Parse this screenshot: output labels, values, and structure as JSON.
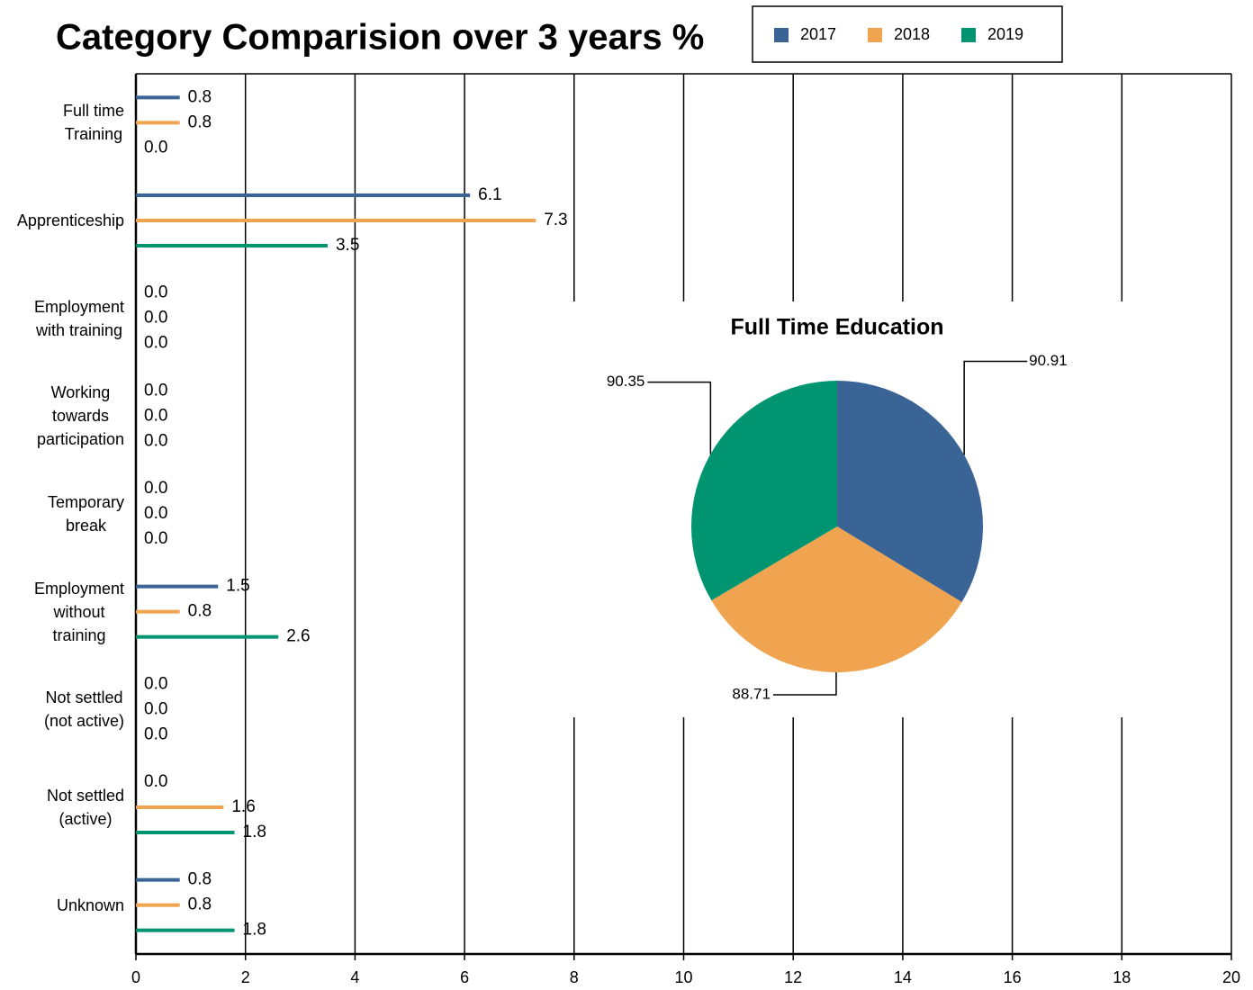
{
  "chart_data": [
    {
      "type": "hbar",
      "title": "Category Comparision over 3 years %",
      "categories": [
        "Full time\nTraining",
        "Apprenticeship",
        "Employment\nwith training",
        "Working\ntowards\nparticipation",
        "Temporary\nbreak",
        "Employment\nwithout\ntraining",
        "Not settled\n(not active)",
        "Not settled\n(active)",
        "Unknown"
      ],
      "series": [
        {
          "name": "2017",
          "color": "#3a6496",
          "values": [
            0.8,
            6.1,
            0,
            0,
            0,
            1.5,
            0,
            0,
            0.8
          ],
          "value_labels": [
            "0.8",
            "6.1",
            "0.0",
            "0.0",
            "0.0",
            "1.5",
            "0.0",
            "0.0",
            "0.8"
          ]
        },
        {
          "name": "2018",
          "color": "#f0a450",
          "values": [
            0.8,
            7.3,
            0,
            0,
            0,
            0.8,
            0,
            1.6,
            0.8
          ],
          "value_labels": [
            "0.8",
            "7.3",
            "0.0",
            "0.0",
            "0.0",
            "0.8",
            "0.0",
            "1.6",
            "0.8"
          ]
        },
        {
          "name": "2019",
          "color": "#009470",
          "values": [
            0,
            3.5,
            0,
            0,
            0,
            2.6,
            0,
            1.8,
            1.8
          ],
          "value_labels": [
            "0.0",
            "3.5",
            "0.0",
            "0.0",
            "0.0",
            "2.6",
            "0.0",
            "1.8",
            "1.8"
          ]
        }
      ],
      "xlim": [
        0,
        20
      ],
      "xticks": [
        0,
        2,
        4,
        6,
        8,
        10,
        12,
        14,
        16,
        18,
        20
      ],
      "grid": true,
      "legend": "top-right"
    },
    {
      "type": "pie",
      "title": "Full Time Education",
      "values": [
        90.91,
        88.71,
        90.35
      ],
      "colors": [
        "#3a6496",
        "#f0a450",
        "#009470"
      ]
    }
  ]
}
